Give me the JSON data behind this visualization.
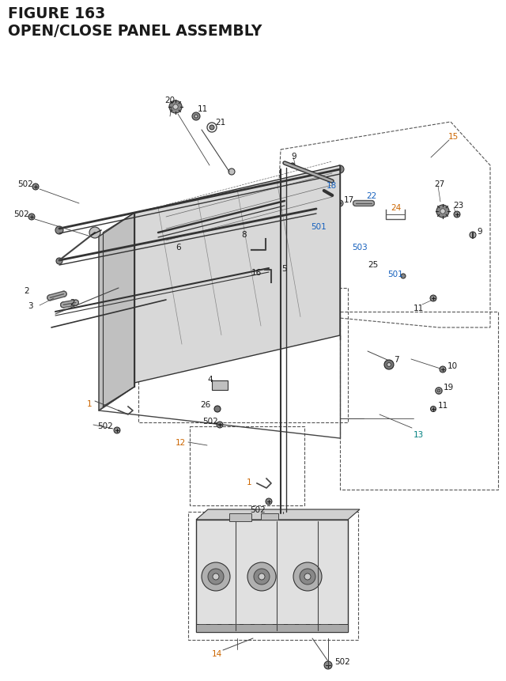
{
  "title_line1": "FIGURE 163",
  "title_line2": "OPEN/CLOSE PANEL ASSEMBLY",
  "bg_color": "#ffffff",
  "label_color_black": "#1a1a1a",
  "label_color_blue": "#1560bd",
  "label_color_orange": "#cc6600",
  "label_color_teal": "#008080",
  "dashed_box_color": "#555555",
  "line_color": "#444444"
}
